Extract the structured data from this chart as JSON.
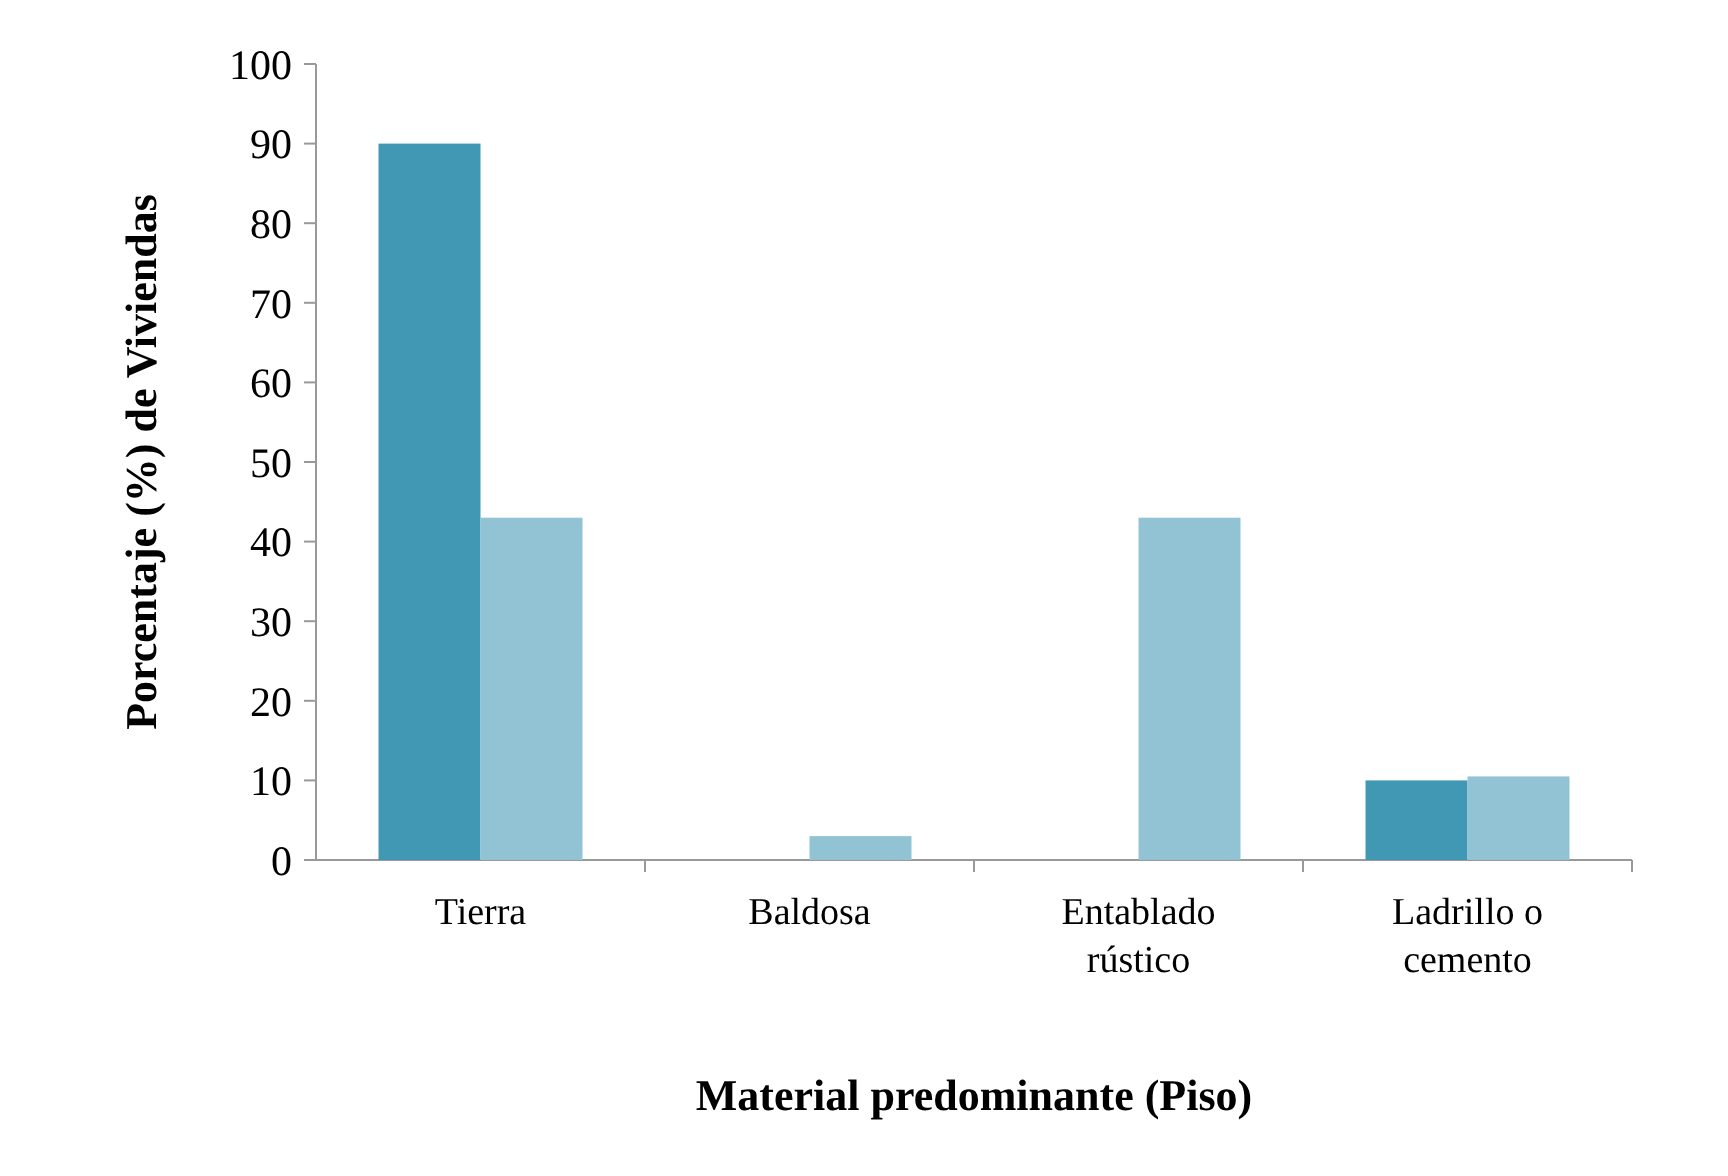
{
  "chart_data": {
    "type": "bar",
    "xlabel": "Material predominante (Piso)",
    "ylabel": "Porcentaje (%) de Viviendas",
    "categories": [
      "Tierra",
      "Baldosa",
      "Entablado rústico",
      "Ladrillo o cemento"
    ],
    "series": [
      {
        "color": "#4198b5",
        "values": [
          90,
          0,
          0,
          10
        ]
      },
      {
        "color": "#92c3d5",
        "values": [
          43,
          3,
          43,
          10.5
        ]
      }
    ],
    "ylim": [
      0,
      100
    ],
    "yticks": [
      0,
      10,
      20,
      30,
      40,
      50,
      60,
      70,
      80,
      90,
      100
    ],
    "grid": false
  }
}
